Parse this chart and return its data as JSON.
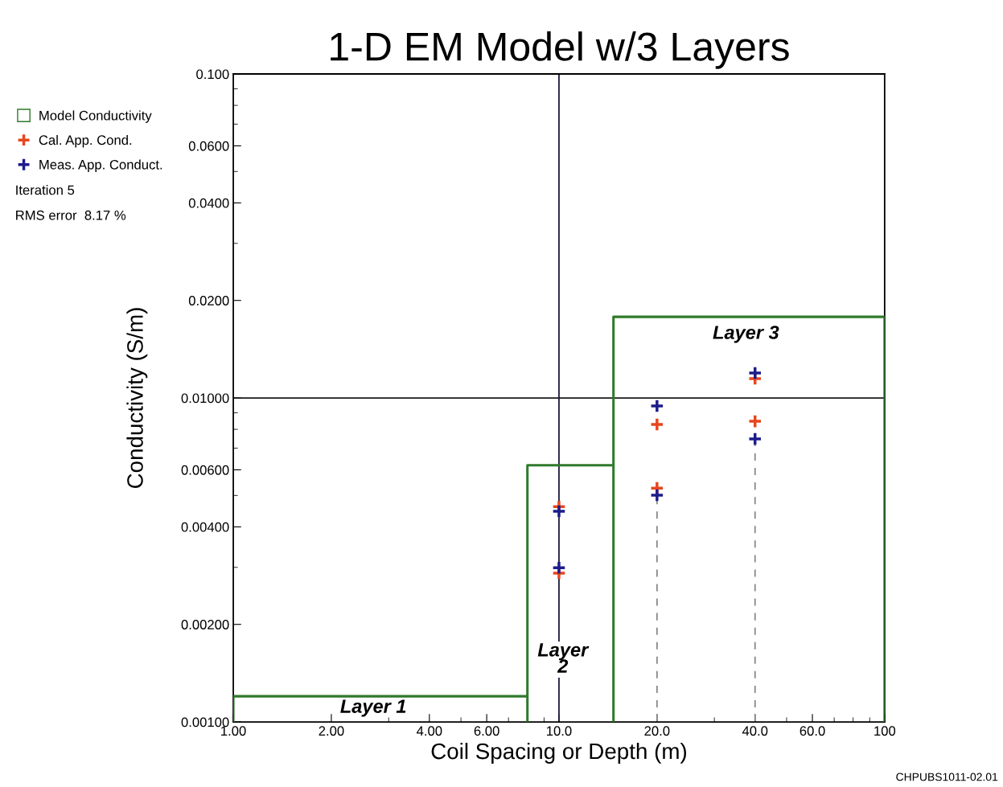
{
  "chart_data": {
    "type": "scatter",
    "title": "1-D EM Model w/3 Layers",
    "xlabel": "Coil Spacing or Depth (m)",
    "ylabel": "Conductivity (S/m)",
    "log": "xy",
    "xlim": [
      1,
      100
    ],
    "ylim": [
      0.001,
      0.1
    ],
    "xticks": [
      {
        "value": 1,
        "label": "1.00"
      },
      {
        "value": 2,
        "label": "2.00"
      },
      {
        "value": 4,
        "label": "4.00"
      },
      {
        "value": 6,
        "label": "6.00"
      },
      {
        "value": 10,
        "label": "10.0"
      },
      {
        "value": 20,
        "label": "20.0"
      },
      {
        "value": 40,
        "label": "40.0"
      },
      {
        "value": 60,
        "label": "60.0"
      },
      100
    ],
    "yticks": [
      {
        "value": 0.001,
        "label": "0.00100"
      },
      {
        "value": 0.002,
        "label": "0.00200"
      },
      {
        "value": 0.004,
        "label": "0.00400"
      },
      {
        "value": 0.006,
        "label": "0.00600"
      },
      {
        "value": 0.01,
        "label": "0.01000"
      },
      {
        "value": 0.02,
        "label": "0.0200"
      },
      {
        "value": 0.04,
        "label": "0.0400"
      },
      {
        "value": 0.06,
        "label": "0.0600"
      },
      {
        "value": 0.1,
        "label": "0.100"
      }
    ],
    "series": [
      {
        "name": "Model Conductivity",
        "type": "line",
        "color": "#2f7a2a",
        "x": [
          1,
          1,
          8.0,
          8.0,
          8.0,
          14.7,
          14.7,
          14.7,
          100,
          100
        ],
        "values": [
          0.001,
          0.0012,
          0.0012,
          0.001,
          0.0062,
          0.0062,
          0.001,
          0.0178,
          0.0178,
          0.001
        ]
      },
      {
        "name": "Cal. App. Cond.",
        "color": "#e8461e",
        "marker": "cross",
        "x": [
          10,
          10,
          20,
          20,
          40,
          40
        ],
        "values": [
          0.00462,
          0.00288,
          0.00828,
          0.00527,
          0.01147,
          0.00847
        ]
      },
      {
        "name": "Meas. App. Conduct.",
        "color": "#1c1c8a",
        "marker": "cross",
        "x": [
          10,
          10,
          20,
          20,
          40,
          40
        ],
        "values": [
          0.00447,
          0.00299,
          0.00945,
          0.00501,
          0.01194,
          0.00747
        ]
      }
    ],
    "ref_lines": [
      {
        "axis": "x",
        "value": 10,
        "color": "#1a1a3a"
      },
      {
        "axis": "y",
        "value": 0.01,
        "color": "#1a1a1a"
      },
      {
        "axis": "x",
        "value": 20,
        "color": "#888888",
        "line_style": "dashed"
      },
      {
        "axis": "x",
        "value": 40,
        "color": "#888888",
        "line_style": "dashed"
      }
    ],
    "annotations": [
      "Layer 1",
      "Layer\n2",
      "Layer 3",
      "Iteration 5",
      "RMS error  8.17 %",
      "CHPUBS1011-02.01"
    ],
    "legend": "left",
    "grid": false
  }
}
